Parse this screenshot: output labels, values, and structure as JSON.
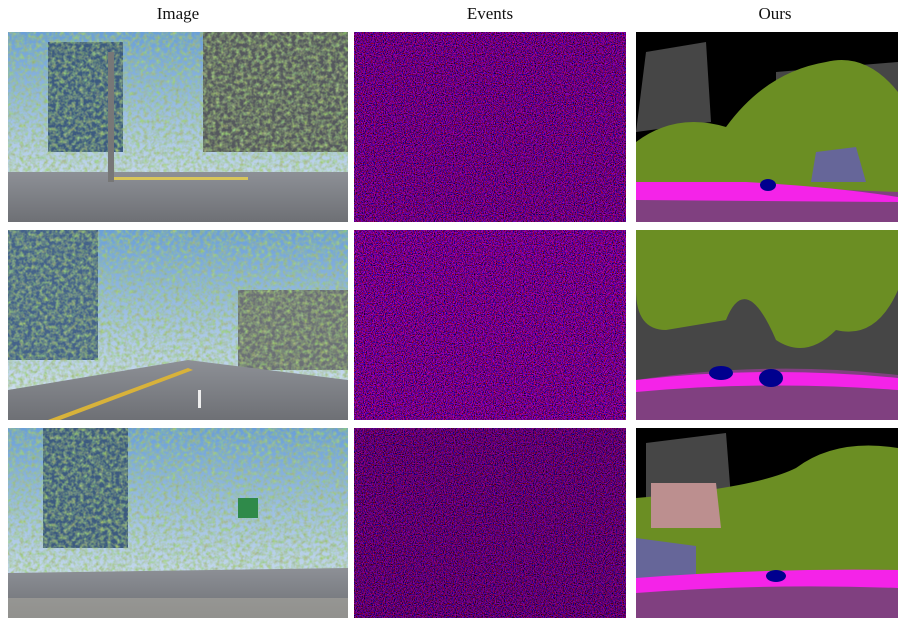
{
  "figure": {
    "columns": [
      "Image",
      "Events",
      "Ours"
    ]
  }
}
